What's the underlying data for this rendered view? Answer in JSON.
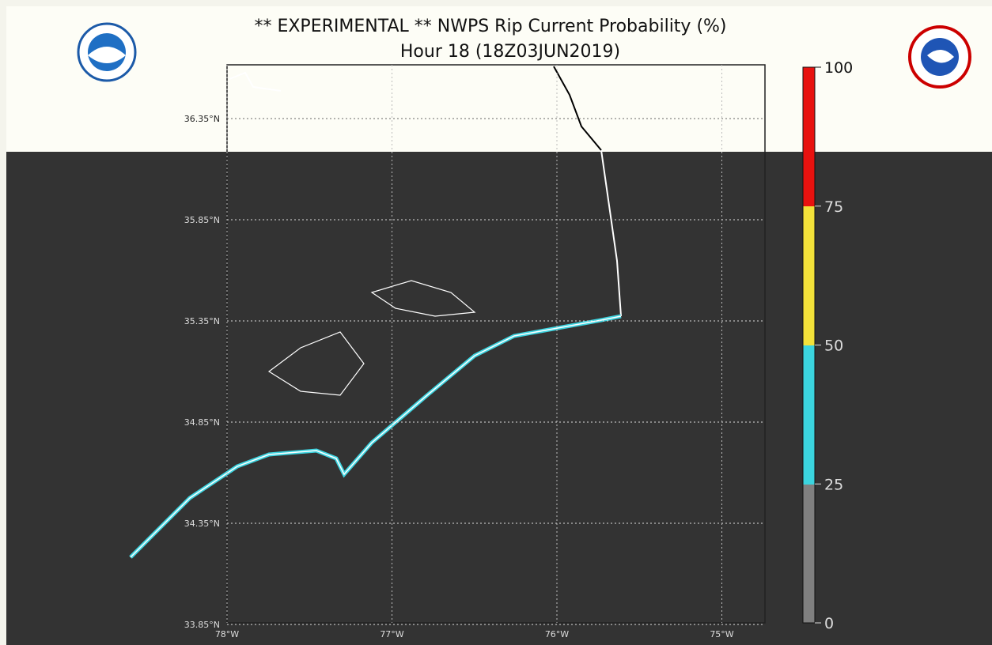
{
  "header": {
    "title": "** EXPERIMENTAL **   NWPS Rip Current Probability (%)",
    "subtitle": "Hour 18 (18Z03JUN2019)"
  },
  "map": {
    "lat_labels": [
      "36.35°N",
      "35.85°N",
      "35.35°N",
      "34.85°N",
      "34.35°N",
      "33.85°N"
    ],
    "lon_labels": [
      "78°W",
      "77°W",
      "76°W",
      "75°W"
    ]
  },
  "colorbar": {
    "lim": [
      0,
      100
    ],
    "ticks": [
      0,
      25,
      50,
      75,
      100
    ]
  }
}
